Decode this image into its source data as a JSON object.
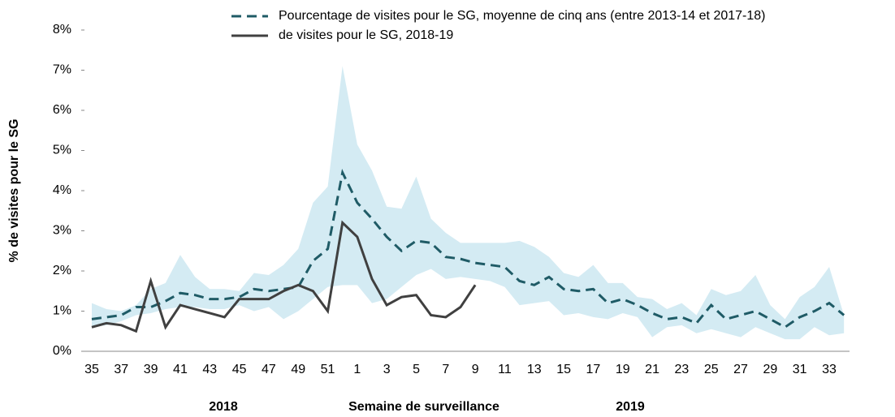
{
  "chart_data": {
    "type": "line",
    "y_label": "% de visites pour le SG",
    "x_label": "Semaine de surveillance",
    "annotations": [
      "2018",
      "2019"
    ],
    "categories": [
      "35",
      null,
      "37",
      null,
      "39",
      null,
      "41",
      null,
      "43",
      null,
      "45",
      null,
      "47",
      null,
      "49",
      null,
      "51",
      null,
      "1",
      null,
      "3",
      null,
      "5",
      null,
      "7",
      null,
      "9",
      null,
      "11",
      null,
      "13",
      null,
      "15",
      null,
      "17",
      null,
      "19",
      null,
      "21",
      null,
      "23",
      null,
      "25",
      null,
      "27",
      null,
      "29",
      null,
      "31",
      null,
      "33",
      null
    ],
    "band": {
      "color": "#d4ebf3",
      "upper": [
        1.2,
        1.05,
        1.0,
        1.15,
        1.55,
        1.7,
        2.4,
        1.85,
        1.55,
        1.55,
        1.5,
        1.95,
        1.9,
        2.15,
        2.55,
        3.7,
        4.1,
        7.1,
        5.15,
        4.5,
        3.6,
        3.55,
        4.35,
        3.3,
        2.95,
        2.7,
        2.7,
        2.7,
        2.7,
        2.75,
        2.6,
        2.35,
        1.95,
        1.85,
        2.15,
        1.7,
        1.7,
        1.35,
        1.3,
        1.05,
        1.2,
        0.9,
        1.55,
        1.4,
        1.5,
        1.9,
        1.15,
        0.8,
        1.35,
        1.6,
        2.1,
        0.9
      ],
      "lower": [
        0.6,
        0.65,
        0.75,
        0.9,
        0.95,
        1.05,
        1.1,
        1.1,
        1.05,
        1.05,
        1.15,
        1.0,
        1.1,
        0.8,
        1.0,
        1.3,
        1.6,
        1.65,
        1.65,
        1.2,
        1.3,
        1.6,
        1.9,
        2.05,
        1.8,
        1.85,
        1.8,
        1.75,
        1.6,
        1.15,
        1.2,
        1.25,
        0.9,
        0.95,
        0.85,
        0.8,
        0.95,
        0.85,
        0.35,
        0.6,
        0.65,
        0.45,
        0.55,
        0.45,
        0.35,
        0.6,
        0.45,
        0.3,
        0.3,
        0.6,
        0.4,
        0.45
      ]
    },
    "series": [
      {
        "name": "Pourcentage de visites pour le SG, moyenne de cinq ans (entre 2013-14 et 2017-18)",
        "color": "#1f5b66",
        "dashed": true,
        "values": [
          0.8,
          0.85,
          0.9,
          1.1,
          1.1,
          1.25,
          1.45,
          1.4,
          1.3,
          1.3,
          1.35,
          1.55,
          1.5,
          1.55,
          1.6,
          2.25,
          2.55,
          4.45,
          3.7,
          3.3,
          2.85,
          2.5,
          2.75,
          2.7,
          2.35,
          2.3,
          2.2,
          2.15,
          2.1,
          1.75,
          1.65,
          1.85,
          1.55,
          1.5,
          1.55,
          1.2,
          1.3,
          1.15,
          0.95,
          0.8,
          0.85,
          0.7,
          1.15,
          0.8,
          0.9,
          1.0,
          0.8,
          0.6,
          0.85,
          1.0,
          1.2,
          0.9
        ]
      },
      {
        "name": "de visites pour le SG, 2018-19",
        "color": "#404040",
        "dashed": false,
        "values": [
          0.6,
          0.7,
          0.65,
          0.5,
          1.75,
          0.6,
          1.15,
          1.05,
          0.95,
          0.85,
          1.3,
          1.3,
          1.3,
          1.5,
          1.65,
          1.5,
          1.0,
          3.2,
          2.85,
          1.8,
          1.15,
          1.35,
          1.4,
          0.9,
          0.85,
          1.1,
          1.65,
          null,
          null,
          null,
          null,
          null,
          null,
          null,
          null,
          null,
          null,
          null,
          null,
          null,
          null,
          null,
          null,
          null,
          null,
          null,
          null,
          null,
          null,
          null,
          null,
          null
        ]
      }
    ],
    "ylim": [
      0,
      8
    ],
    "yticks": [
      {
        "value": 0,
        "label": "0%"
      },
      {
        "value": 1,
        "label": "1%"
      },
      {
        "value": 2,
        "label": "2%"
      },
      {
        "value": 3,
        "label": "3%"
      },
      {
        "value": 4,
        "label": "4%"
      },
      {
        "value": 5,
        "label": "5%"
      },
      {
        "value": 6,
        "label": "6%"
      },
      {
        "value": 7,
        "label": "7%"
      },
      {
        "value": 8,
        "label": "8%"
      }
    ]
  }
}
